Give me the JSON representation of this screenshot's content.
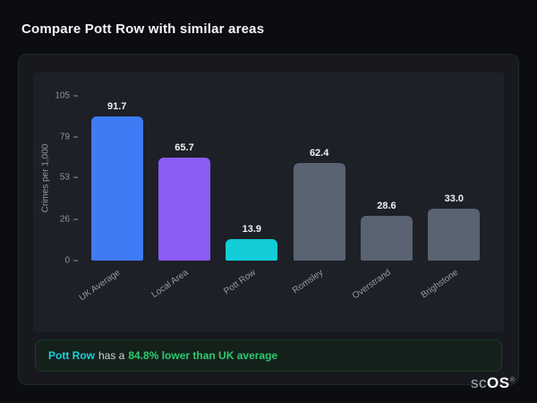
{
  "page": {
    "title": "Compare Pott Row with similar areas"
  },
  "chart_data": {
    "type": "bar",
    "categories": [
      "UK Average",
      "Local Area",
      "Pott Row",
      "Romsley",
      "Overstrand",
      "Brighstone"
    ],
    "values": [
      91.7,
      65.7,
      13.9,
      62.4,
      28.6,
      33.0
    ],
    "value_labels": [
      "91.7",
      "65.7",
      "13.9",
      "62.4",
      "28.6",
      "33.0"
    ],
    "bar_colors": [
      "#3e7bf5",
      "#8b5cf6",
      "#12ccd8",
      "#5a6372",
      "#5a6372",
      "#5a6372"
    ],
    "title": "",
    "xlabel": "",
    "ylabel": "Crimes per 1,000",
    "yticks": [
      0,
      26,
      53,
      79,
      105
    ],
    "ylim": [
      0,
      105
    ],
    "grid": false,
    "legend": "none"
  },
  "footer_note": {
    "area": "Pott Row",
    "connector": "has a",
    "stat": "84.8% lower than UK average"
  },
  "logo": {
    "prefix": "sc",
    "suffix": "OS",
    "registered": "®"
  },
  "colors": {
    "page_bg": "#0c0d10",
    "card_bg": "#17191e",
    "plot_bg": "#1d2026",
    "accent_blue": "#3e7bf5",
    "accent_purple": "#8b5cf6",
    "accent_cyan": "#12ccd8",
    "neutral_bar": "#5a6372",
    "positive_green": "#2fc96f"
  }
}
